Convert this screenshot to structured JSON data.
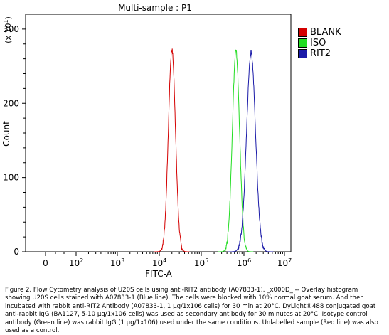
{
  "chart_data": {
    "type": "line",
    "title": "Multi-sample : P1",
    "xlabel": "FITC-A",
    "ylabel": "Count",
    "y_multiplier_label": "(x 10",
    "y_multiplier_exp": "1",
    "x_scale": "log",
    "xlim": [
      0,
      10000000
    ],
    "ylim": [
      0,
      320
    ],
    "x_tick_labels": [
      {
        "base": "0",
        "exp": ""
      },
      {
        "base": "10",
        "exp": "2"
      },
      {
        "base": "10",
        "exp": "3"
      },
      {
        "base": "10",
        "exp": "4"
      },
      {
        "base": "10",
        "exp": "5"
      },
      {
        "base": "10",
        "exp": "6"
      },
      {
        "base": "10",
        "exp": "7"
      }
    ],
    "y_ticks": [
      0,
      100,
      200,
      300
    ],
    "y_tick_labels": [
      "0",
      "100",
      "200",
      "300"
    ],
    "legend_position": "right",
    "series": [
      {
        "name": "BLANK",
        "color": "#d40000",
        "peak_x": 20000,
        "peak_y": 272,
        "width_decades": 0.085
      },
      {
        "name": "ISO",
        "color": "#22dd22",
        "peak_x": 650000,
        "peak_y": 270,
        "width_decades": 0.085
      },
      {
        "name": "RIT2",
        "color": "#1a1aa8",
        "peak_x": 1500000,
        "peak_y": 268,
        "width_decades": 0.11
      }
    ]
  },
  "caption": "Figure 2. Flow Cytometry analysis of U20S cells using anti-RIT2 antibody (A07833-1). _x000D_ -- Overlay histogram showing U20S cells stained with A07833-1 (Blue line). The cells were blocked with 10% normal goat serum. And then incubated with rabbit anti-RIT2 Antibody (A07833-1, 1 μg/1x106 cells) for 30 min at 20°C. DyLight®488 conjugated goat anti-rabbit IgG (BA1127, 5-10 μg/1x106 cells) was used as secondary antibody for 30 minutes at 20°C. Isotype control antibody (Green line) was rabbit IgG (1 μg/1x106) used under the same conditions. Unlabelled sample (Red line) was also used as a control."
}
